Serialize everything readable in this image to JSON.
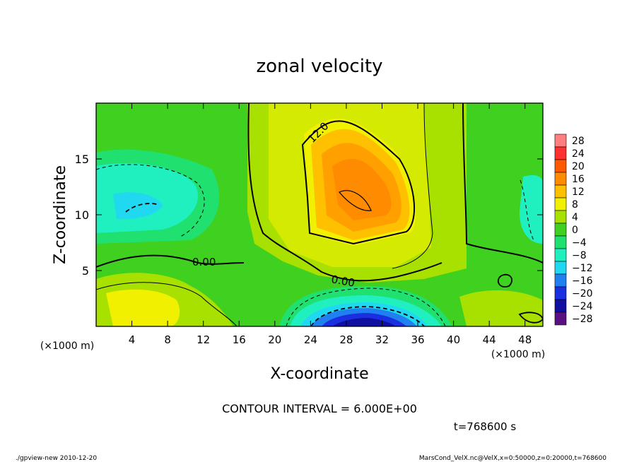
{
  "chart_data": {
    "type": "heatmap",
    "title": "zonal velocity",
    "xlabel": "X-coordinate",
    "ylabel": "Z-coordinate",
    "x_unit_note": "(×1000 m)",
    "y_unit_note": "(×1000 m)",
    "xlim": [
      0,
      50
    ],
    "ylim": [
      0,
      20
    ],
    "x_ticks": [
      4,
      8,
      12,
      16,
      20,
      24,
      28,
      32,
      36,
      40,
      44,
      48
    ],
    "y_ticks": [
      5,
      10,
      15
    ],
    "colorbar": {
      "levels": [
        28,
        24,
        20,
        16,
        12,
        8,
        4,
        0,
        -4,
        -8,
        -12,
        -16,
        -20,
        -24,
        -28
      ],
      "colors": [
        "#ff7f7f",
        "#ff3030",
        "#ff5a00",
        "#ff8c00",
        "#ffc000",
        "#f0f000",
        "#a8e000",
        "#40d020",
        "#20e070",
        "#20f0c0",
        "#20d8f0",
        "#2080f0",
        "#1a30e0",
        "#1010a0",
        "#5a1080"
      ]
    },
    "contour_labels": [
      "12.0",
      "0.00",
      "0.00"
    ],
    "contour_interval_text": "CONTOUR INTERVAL = 6.000E+00",
    "time_text": "t=768600 s",
    "grid": false
  },
  "footer": {
    "left": "./gpview-new 2010-12-20",
    "right": "MarsCond_VelX.nc@VelX,x=0:50000,z=0:20000,t=768600"
  }
}
